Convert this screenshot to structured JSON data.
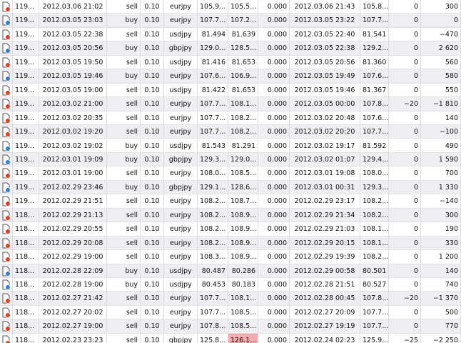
{
  "table": {
    "rows": [
      [
        "119...",
        "2012.03.06 21:02",
        "sell",
        "0.10",
        "eurjpy",
        "105.9...",
        "105.5...",
        "0.000",
        "2012.03.06 21:43",
        "105.8...",
        "0",
        "300"
      ],
      [
        "119...",
        "2012.03.05 23:03",
        "buy",
        "0.10",
        "eurjpy",
        "107.7...",
        "107.2...",
        "0.000",
        "2012.03.05 23:22",
        "107.7...",
        "0",
        "0"
      ],
      [
        "119...",
        "2012.03.05 22:38",
        "sell",
        "0.10",
        "usdjpy",
        "81.494",
        "81.639",
        "0.000",
        "2012.03.05 22:40",
        "81.541",
        "0",
        "−470"
      ],
      [
        "119...",
        "2012.03.05 20:56",
        "buy",
        "0.10",
        "gbpjpy",
        "129.0...",
        "128.5...",
        "0.000",
        "2012.03.05 22:38",
        "129.2...",
        "0",
        "2 620"
      ],
      [
        "119...",
        "2012.03.05 19:50",
        "sell",
        "0.10",
        "usdjpy",
        "81.416",
        "81.653",
        "0.000",
        "2012.03.05 20:56",
        "81.360",
        "0",
        "560"
      ],
      [
        "119...",
        "2012.03.05 19:46",
        "buy",
        "0.10",
        "eurjpy",
        "107.6...",
        "106.9...",
        "0.000",
        "2012.03.05 19:49",
        "107.6...",
        "0",
        "580"
      ],
      [
        "119...",
        "2012.03.05 19:00",
        "sell",
        "0.10",
        "usdjpy",
        "81.422",
        "81.653",
        "0.000",
        "2012.03.05 19:46",
        "81.367",
        "0",
        "550"
      ],
      [
        "119...",
        "2012.03.02 21:00",
        "sell",
        "0.10",
        "eurjpy",
        "107.7...",
        "108.1...",
        "0.000",
        "2012.03.05 00:00",
        "107.8...",
        "−20",
        "−1 810"
      ],
      [
        "119...",
        "2012.03.02 20:35",
        "sell",
        "0.10",
        "eurjpy",
        "107.7...",
        "108.2...",
        "0.000",
        "2012.03.02 20:48",
        "107.6...",
        "0",
        "140"
      ],
      [
        "119...",
        "2012.03.02 19:20",
        "sell",
        "0.10",
        "eurjpy",
        "107.7...",
        "108.2...",
        "0.000",
        "2012.03.02 20:20",
        "107.7...",
        "0",
        "−100"
      ],
      [
        "119...",
        "2012.03.02 19:02",
        "buy",
        "0.10",
        "usdjpy",
        "81.543",
        "81.291",
        "0.000",
        "2012.03.02 19:17",
        "81.592",
        "0",
        "490"
      ],
      [
        "119...",
        "2012.03.01 19:09",
        "buy",
        "0.10",
        "gbpjpy",
        "129.3...",
        "129.0...",
        "0.000",
        "2012.03.02 01:07",
        "129.4...",
        "0",
        "1 590"
      ],
      [
        "119...",
        "2012.03.01 19:00",
        "sell",
        "0.10",
        "eurjpy",
        "108.0...",
        "108.5...",
        "0.000",
        "2012.03.01 19:08",
        "108.0...",
        "0",
        "700"
      ],
      [
        "119...",
        "2012.02.29 23:46",
        "buy",
        "0.10",
        "gbpjpy",
        "129.1...",
        "128.6...",
        "0.000",
        "2012.03.01 00:31",
        "129.3...",
        "0",
        "1 330"
      ],
      [
        "119...",
        "2012.02.29 21:51",
        "sell",
        "0.10",
        "eurjpy",
        "108.2...",
        "108.7...",
        "0.000",
        "2012.02.29 23:17",
        "108.2...",
        "0",
        "−140"
      ],
      [
        "118...",
        "2012.02.29 21:13",
        "sell",
        "0.10",
        "eurjpy",
        "108.2...",
        "108.9...",
        "0.000",
        "2012.02.29 21:34",
        "108.2...",
        "0",
        "300"
      ],
      [
        "118...",
        "2012.02.29 20:55",
        "sell",
        "0.10",
        "eurjpy",
        "108.2...",
        "108.9...",
        "0.000",
        "2012.02.29 21:03",
        "108.1...",
        "0",
        "190"
      ],
      [
        "118...",
        "2012.02.29 20:08",
        "sell",
        "0.10",
        "eurjpy",
        "108.2...",
        "108.9...",
        "0.000",
        "2012.02.29 20:15",
        "108.1...",
        "0",
        "330"
      ],
      [
        "118...",
        "2012.02.29 19:00",
        "sell",
        "0.10",
        "eurjpy",
        "108.3...",
        "108.9...",
        "0.000",
        "2012.02.29 19:39",
        "108.2...",
        "0",
        "1 200"
      ],
      [
        "118...",
        "2012.02.28 22:09",
        "buy",
        "0.10",
        "usdjpy",
        "80.487",
        "80.286",
        "0.000",
        "2012.02.29 00:58",
        "80.501",
        "0",
        "140"
      ],
      [
        "118...",
        "2012.02.28 19:00",
        "buy",
        "0.10",
        "usdjpy",
        "80.453",
        "80.183",
        "0.000",
        "2012.02.28 21:51",
        "80.527",
        "0",
        "740"
      ],
      [
        "118...",
        "2012.02.27 21:42",
        "sell",
        "0.10",
        "eurjpy",
        "107.7...",
        "108.1...",
        "0.000",
        "2012.02.28 00:45",
        "107.8...",
        "−20",
        "−1 370"
      ],
      [
        "118...",
        "2012.02.27 20:02",
        "sell",
        "0.10",
        "eurjpy",
        "107.7...",
        "108.5...",
        "0.000",
        "2012.02.27 20:09",
        "107.7...",
        "0",
        "500"
      ],
      [
        "118...",
        "2012.02.27 19:00",
        "sell",
        "0.10",
        "eurjpy",
        "107.8...",
        "108.5...",
        "0.000",
        "2012.02.27 19:19",
        "107.7...",
        "0",
        "770"
      ],
      [
        "118...",
        "2012.02.23 23:23",
        "sell",
        "0.10",
        "gbpjpy",
        "125.8...",
        "126.1...",
        "0.000",
        "2012.02.24 02:23",
        "125.9...",
        "−25",
        "−2 250"
      ]
    ]
  }
}
